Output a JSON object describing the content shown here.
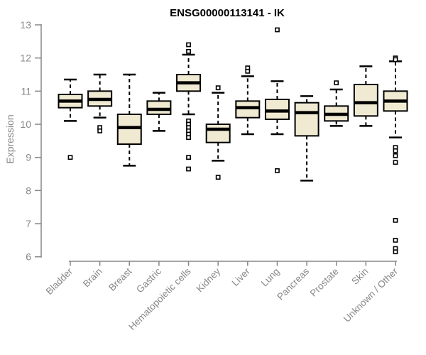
{
  "chart_data": {
    "type": "boxplot",
    "title": "ENSG00000113141 - IK",
    "ylabel": "Expression",
    "xlabel": "",
    "ylim": [
      6,
      13
    ],
    "yticks": [
      6,
      7,
      8,
      9,
      10,
      11,
      12,
      13
    ],
    "grid": "off",
    "legend": "none",
    "categories": [
      "Bladder",
      "Brain",
      "Breast",
      "Gastric",
      "Hematopoietic cells",
      "Kidney",
      "Liver",
      "Lung",
      "Pancreas",
      "Prostate",
      "Skin",
      "Unknown / Other"
    ],
    "series": [
      {
        "category": "Bladder",
        "whisker_low": 10.1,
        "q1": 10.5,
        "median": 10.7,
        "q3": 10.9,
        "whisker_high": 11.35,
        "outliers": [
          9.0
        ]
      },
      {
        "category": "Brain",
        "whisker_low": 10.2,
        "q1": 10.55,
        "median": 10.75,
        "q3": 11.0,
        "whisker_high": 11.5,
        "outliers": [
          9.9,
          9.8
        ]
      },
      {
        "category": "Breast",
        "whisker_low": 8.75,
        "q1": 9.4,
        "median": 9.9,
        "q3": 10.3,
        "whisker_high": 11.5,
        "outliers": []
      },
      {
        "category": "Gastric",
        "whisker_low": 9.8,
        "q1": 10.3,
        "median": 10.45,
        "q3": 10.7,
        "whisker_high": 10.95,
        "outliers": []
      },
      {
        "category": "Hematopoietic cells",
        "whisker_low": 10.3,
        "q1": 11.0,
        "median": 11.25,
        "q3": 11.5,
        "whisker_high": 12.1,
        "outliers": [
          12.4,
          12.2,
          10.1,
          10.0,
          9.9,
          9.8,
          9.7,
          9.6,
          9.0,
          8.65
        ]
      },
      {
        "category": "Kidney",
        "whisker_low": 8.9,
        "q1": 9.45,
        "median": 9.85,
        "q3": 10.0,
        "whisker_high": 10.95,
        "outliers": [
          11.1,
          8.4
        ]
      },
      {
        "category": "Liver",
        "whisker_low": 9.7,
        "q1": 10.2,
        "median": 10.5,
        "q3": 10.7,
        "whisker_high": 11.45,
        "outliers": [
          11.7,
          11.6
        ]
      },
      {
        "category": "Lung",
        "whisker_low": 9.7,
        "q1": 10.15,
        "median": 10.4,
        "q3": 10.75,
        "whisker_high": 11.3,
        "outliers": [
          12.85,
          8.6
        ]
      },
      {
        "category": "Pancreas",
        "whisker_low": 8.3,
        "q1": 9.65,
        "median": 10.35,
        "q3": 10.65,
        "whisker_high": 10.85,
        "outliers": []
      },
      {
        "category": "Prostate",
        "whisker_low": 9.95,
        "q1": 10.1,
        "median": 10.3,
        "q3": 10.55,
        "whisker_high": 11.05,
        "outliers": [
          11.25
        ]
      },
      {
        "category": "Skin",
        "whisker_low": 9.95,
        "q1": 10.25,
        "median": 10.65,
        "q3": 11.2,
        "whisker_high": 11.75,
        "outliers": []
      },
      {
        "category": "Unknown / Other",
        "whisker_low": 9.6,
        "q1": 10.4,
        "median": 10.7,
        "q3": 11.0,
        "whisker_high": 11.9,
        "outliers": [
          12.0,
          11.95,
          9.3,
          9.2,
          9.05,
          8.85,
          7.1,
          6.5,
          6.25,
          6.15
        ]
      }
    ],
    "style": {
      "background": "#ffffff",
      "box_fill": "#F0EAD2",
      "box_stroke": "#000000",
      "median_color": "#000000",
      "whisker_style": "dashed",
      "outlier_marker": "open-square",
      "axis_color": "#878787",
      "title_color": "#000000"
    }
  }
}
